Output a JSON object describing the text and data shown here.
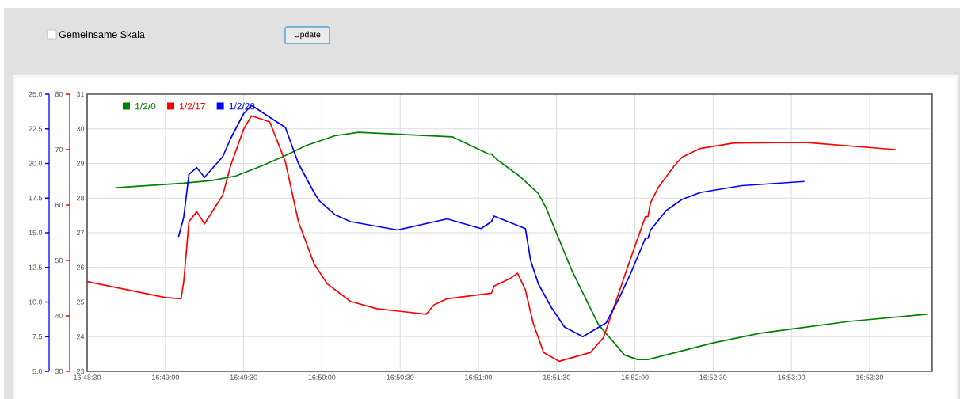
{
  "chart_data": {
    "type": "line",
    "annotations": [
      "Gemeinsame Skala",
      "Update"
    ],
    "xlim": [
      16.80833,
      16.89833
    ],
    "xticks": [
      {
        "value": 16.80833,
        "label": "16:48:30"
      },
      {
        "value": 16.81667,
        "label": "16:49:00"
      },
      {
        "value": 16.825,
        "label": "16:49:30"
      },
      {
        "value": 16.83333,
        "label": "16:50:00"
      },
      {
        "value": 16.84167,
        "label": "16:50:30"
      },
      {
        "value": 16.85,
        "label": "16:51:00"
      },
      {
        "value": 16.85833,
        "label": "16:51:30"
      },
      {
        "value": 16.86667,
        "label": "16:52:00"
      },
      {
        "value": 16.875,
        "label": "16:52:30"
      },
      {
        "value": 16.88333,
        "label": "16:53:00"
      },
      {
        "value": 16.89167,
        "label": "16:53:30"
      }
    ],
    "ylim": [
      23,
      31
    ],
    "yticks": [
      23,
      24,
      25,
      26,
      27,
      28,
      29,
      30,
      31
    ],
    "y2lim": [
      30,
      80
    ],
    "y2ticks": [
      30,
      40,
      50,
      60,
      70,
      80
    ],
    "y3lim": [
      5,
      25
    ],
    "y3ticks": [
      {
        "value": 5,
        "label": "5.0"
      },
      {
        "value": 7.5,
        "label": "7.5"
      },
      {
        "value": 10,
        "label": "10.0"
      },
      {
        "value": 12.5,
        "label": "12.5"
      },
      {
        "value": 15,
        "label": "15.0"
      },
      {
        "value": 17.5,
        "label": "17.5"
      },
      {
        "value": 20,
        "label": "20.0"
      },
      {
        "value": 22.5,
        "label": "22.5"
      },
      {
        "value": 25,
        "label": "25.0"
      }
    ],
    "grid": true,
    "legend": "top left",
    "series": [
      {
        "name": "1/2/0",
        "color": "#008000",
        "x": [
          16.81139,
          16.81861,
          16.82167,
          16.82417,
          16.82694,
          16.82944,
          16.83167,
          16.83472,
          16.83722,
          16.84722,
          16.85111,
          16.85139,
          16.85194,
          16.85444,
          16.85639,
          16.85722,
          16.86,
          16.86278,
          16.86556,
          16.86694,
          16.86806,
          16.875,
          16.88,
          16.88944,
          16.89778
        ],
        "values": [
          28.3,
          28.43,
          28.51,
          28.64,
          28.93,
          29.23,
          29.52,
          29.8,
          29.9,
          29.77,
          29.27,
          29.27,
          29.12,
          28.62,
          28.13,
          27.71,
          25.88,
          24.35,
          23.47,
          23.34,
          23.34,
          23.82,
          24.1,
          24.44,
          24.65
        ]
      },
      {
        "name": "1/2/17",
        "color": "#ff0000",
        "axis": "y2",
        "x": [
          16.80833,
          16.81667,
          16.81833,
          16.81861,
          16.81917,
          16.82,
          16.82083,
          16.82278,
          16.82361,
          16.825,
          16.82583,
          16.82778,
          16.82944,
          16.83083,
          16.8325,
          16.83389,
          16.83639,
          16.83917,
          16.84444,
          16.84528,
          16.84667,
          16.85139,
          16.85167,
          16.85333,
          16.85417,
          16.855,
          16.85583,
          16.85694,
          16.85861,
          16.86194,
          16.86333,
          16.86611,
          16.86778,
          16.86806,
          16.86833,
          16.86917,
          16.87083,
          16.87167,
          16.87361,
          16.87722,
          16.88472,
          16.89444
        ],
        "values": [
          46.2,
          43.3,
          43.1,
          46.1,
          57.0,
          58.8,
          56.6,
          61.8,
          67.1,
          73.7,
          76.1,
          75.0,
          67.8,
          57.0,
          49.4,
          45.8,
          42.6,
          41.3,
          40.3,
          42.0,
          43.1,
          44.1,
          45.4,
          46.7,
          47.7,
          44.7,
          38.7,
          33.4,
          31.8,
          33.4,
          36.1,
          49.9,
          57.9,
          57.9,
          60.4,
          63.2,
          67.0,
          68.6,
          70.2,
          71.2,
          71.3,
          70.0
        ]
      },
      {
        "name": "1/2/28",
        "color": "#0000ff",
        "axis": "y3",
        "x": [
          16.81806,
          16.81861,
          16.81917,
          16.82,
          16.82083,
          16.82278,
          16.82361,
          16.825,
          16.82583,
          16.82944,
          16.83083,
          16.8325,
          16.83306,
          16.83472,
          16.83639,
          16.84139,
          16.84667,
          16.85028,
          16.85139,
          16.85167,
          16.855,
          16.85556,
          16.85639,
          16.85778,
          16.85917,
          16.86111,
          16.86361,
          16.865,
          16.86611,
          16.86778,
          16.86806,
          16.86833,
          16.87,
          16.87167,
          16.87361,
          16.87806,
          16.88472
        ],
        "values": [
          14.7,
          16.1,
          19.2,
          19.7,
          19.0,
          20.5,
          21.8,
          23.6,
          24.2,
          22.6,
          20.0,
          17.9,
          17.3,
          16.3,
          15.8,
          15.2,
          16.0,
          15.3,
          15.8,
          16.2,
          15.3,
          13.0,
          11.3,
          9.6,
          8.2,
          7.5,
          8.5,
          10.3,
          11.9,
          14.6,
          14.6,
          15.2,
          16.6,
          17.4,
          17.9,
          18.4,
          18.7
        ]
      }
    ]
  }
}
